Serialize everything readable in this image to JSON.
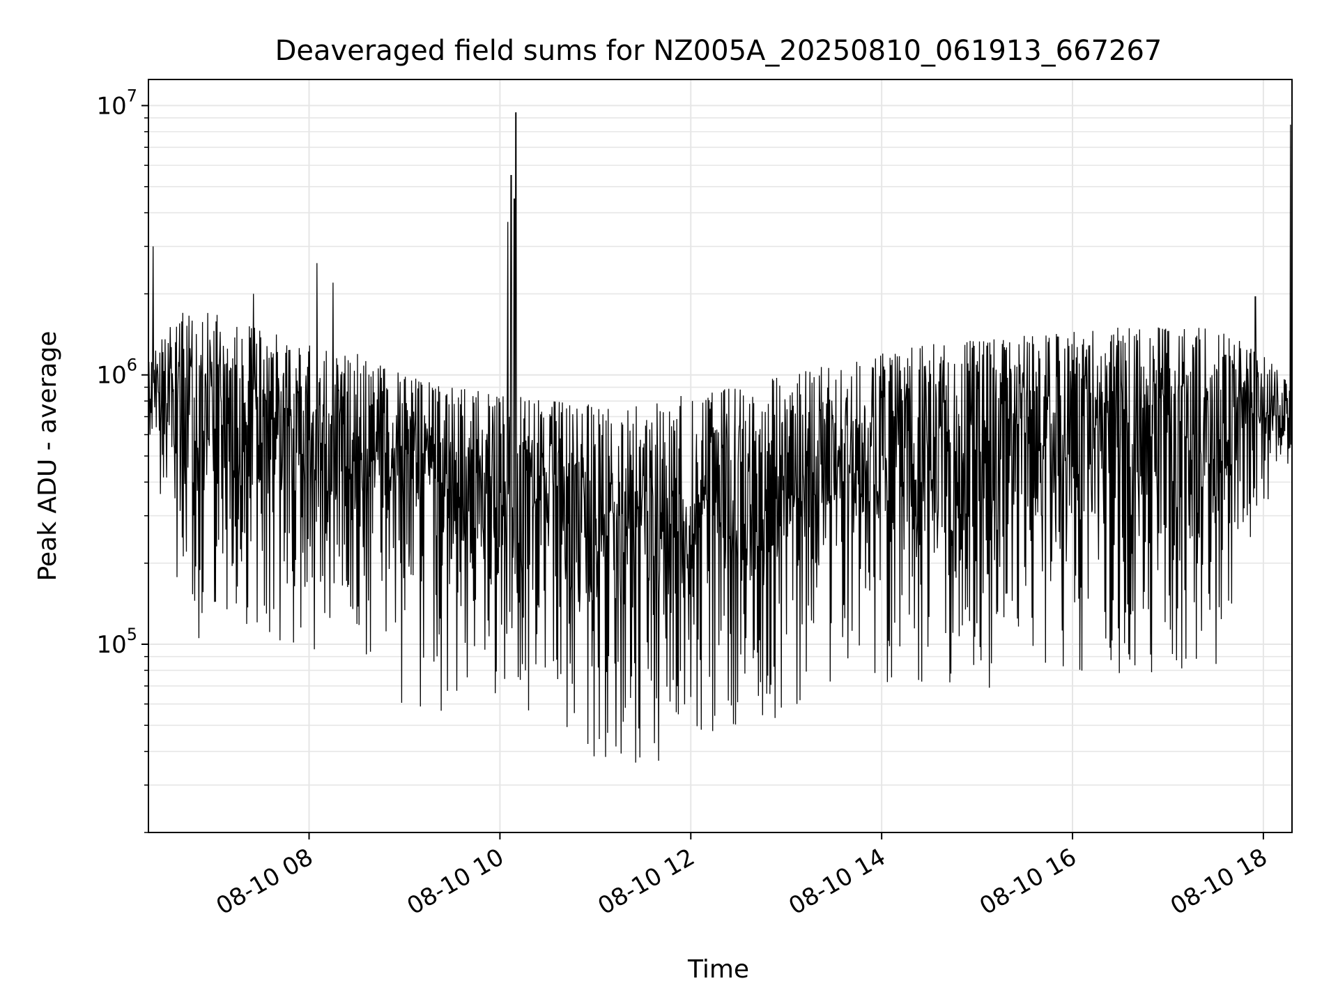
{
  "chart_data": {
    "type": "line",
    "title": "Deaveraged field sums for NZ005A_20250810_061913_667267",
    "xlabel": "Time",
    "ylabel": "Peak ADU - average",
    "yscale": "log",
    "ylim": [
      20000,
      12500000
    ],
    "xlim": [
      "2025-08-10 06:19",
      "2025-08-10 18:18"
    ],
    "grid": true,
    "line_color": "#000000",
    "x_ticks": [
      {
        "label": "08-10 08",
        "value": "2025-08-10 08:00"
      },
      {
        "label": "08-10 10",
        "value": "2025-08-10 10:00"
      },
      {
        "label": "08-10 12",
        "value": "2025-08-10 12:00"
      },
      {
        "label": "08-10 14",
        "value": "2025-08-10 14:00"
      },
      {
        "label": "08-10 16",
        "value": "2025-08-10 16:00"
      },
      {
        "label": "08-10 18",
        "value": "2025-08-10 18:00"
      }
    ],
    "y_ticks": [
      {
        "base": "10",
        "exp": "5",
        "value": 100000
      },
      {
        "base": "10",
        "exp": "6",
        "value": 1000000
      },
      {
        "base": "10",
        "exp": "7",
        "value": 10000000
      }
    ],
    "series": [
      {
        "values_note": "per-frame values oscillating between a lower envelope and an upper envelope (Peak ADU - average)",
        "upper_envelope": [
          {
            "x": "2025-08-10 06:19",
            "y": 1200000
          },
          {
            "x": "2025-08-10 06:40",
            "y": 1700000
          },
          {
            "x": "2025-08-10 07:00",
            "y": 1700000
          },
          {
            "x": "2025-08-10 07:30",
            "y": 1500000
          },
          {
            "x": "2025-08-10 08:00",
            "y": 1300000
          },
          {
            "x": "2025-08-10 08:30",
            "y": 1200000
          },
          {
            "x": "2025-08-10 09:00",
            "y": 1000000
          },
          {
            "x": "2025-08-10 09:30",
            "y": 900000
          },
          {
            "x": "2025-08-10 10:00",
            "y": 850000
          },
          {
            "x": "2025-08-10 10:30",
            "y": 800000
          },
          {
            "x": "2025-08-10 11:00",
            "y": 780000
          },
          {
            "x": "2025-08-10 11:30",
            "y": 780000
          },
          {
            "x": "2025-08-10 12:00",
            "y": 850000
          },
          {
            "x": "2025-08-10 12:30",
            "y": 900000
          },
          {
            "x": "2025-08-10 13:00",
            "y": 1000000
          },
          {
            "x": "2025-08-10 13:30",
            "y": 1100000
          },
          {
            "x": "2025-08-10 14:00",
            "y": 1200000
          },
          {
            "x": "2025-08-10 14:30",
            "y": 1300000
          },
          {
            "x": "2025-08-10 15:00",
            "y": 1350000
          },
          {
            "x": "2025-08-10 15:30",
            "y": 1400000
          },
          {
            "x": "2025-08-10 16:00",
            "y": 1450000
          },
          {
            "x": "2025-08-10 16:30",
            "y": 1500000
          },
          {
            "x": "2025-08-10 17:00",
            "y": 1500000
          },
          {
            "x": "2025-08-10 17:30",
            "y": 1500000
          },
          {
            "x": "2025-08-10 18:00",
            "y": 1200000
          },
          {
            "x": "2025-08-10 18:18",
            "y": 900000
          }
        ],
        "lower_envelope": [
          {
            "x": "2025-08-10 06:19",
            "y": 600000
          },
          {
            "x": "2025-08-10 06:40",
            "y": 120000
          },
          {
            "x": "2025-08-10 07:00",
            "y": 90000
          },
          {
            "x": "2025-08-10 07:30",
            "y": 100000
          },
          {
            "x": "2025-08-10 08:00",
            "y": 90000
          },
          {
            "x": "2025-08-10 08:30",
            "y": 90000
          },
          {
            "x": "2025-08-10 09:00",
            "y": 55000
          },
          {
            "x": "2025-08-10 09:30",
            "y": 55000
          },
          {
            "x": "2025-08-10 10:00",
            "y": 60000
          },
          {
            "x": "2025-08-10 10:30",
            "y": 40000
          },
          {
            "x": "2025-08-10 11:00",
            "y": 33000
          },
          {
            "x": "2025-08-10 11:30",
            "y": 33000
          },
          {
            "x": "2025-08-10 12:00",
            "y": 40000
          },
          {
            "x": "2025-08-10 12:30",
            "y": 45000
          },
          {
            "x": "2025-08-10 13:00",
            "y": 50000
          },
          {
            "x": "2025-08-10 13:30",
            "y": 60000
          },
          {
            "x": "2025-08-10 14:00",
            "y": 65000
          },
          {
            "x": "2025-08-10 14:30",
            "y": 70000
          },
          {
            "x": "2025-08-10 15:00",
            "y": 60000
          },
          {
            "x": "2025-08-10 15:30",
            "y": 65000
          },
          {
            "x": "2025-08-10 16:00",
            "y": 70000
          },
          {
            "x": "2025-08-10 16:30",
            "y": 75000
          },
          {
            "x": "2025-08-10 17:00",
            "y": 80000
          },
          {
            "x": "2025-08-10 17:30",
            "y": 80000
          },
          {
            "x": "2025-08-10 18:00",
            "y": 300000
          },
          {
            "x": "2025-08-10 18:18",
            "y": 500000
          }
        ],
        "spikes": [
          {
            "x": "2025-08-10 06:22",
            "y": 3000000
          },
          {
            "x": "2025-08-10 07:25",
            "y": 2000000
          },
          {
            "x": "2025-08-10 08:05",
            "y": 2600000
          },
          {
            "x": "2025-08-10 08:15",
            "y": 2200000
          },
          {
            "x": "2025-08-10 10:05",
            "y": 3700000
          },
          {
            "x": "2025-08-10 10:07",
            "y": 5500000
          },
          {
            "x": "2025-08-10 10:09",
            "y": 4500000
          },
          {
            "x": "2025-08-10 10:10",
            "y": 9400000
          },
          {
            "x": "2025-08-10 17:55",
            "y": 1950000
          },
          {
            "x": "2025-08-10 18:17",
            "y": 8500000
          }
        ]
      }
    ]
  }
}
